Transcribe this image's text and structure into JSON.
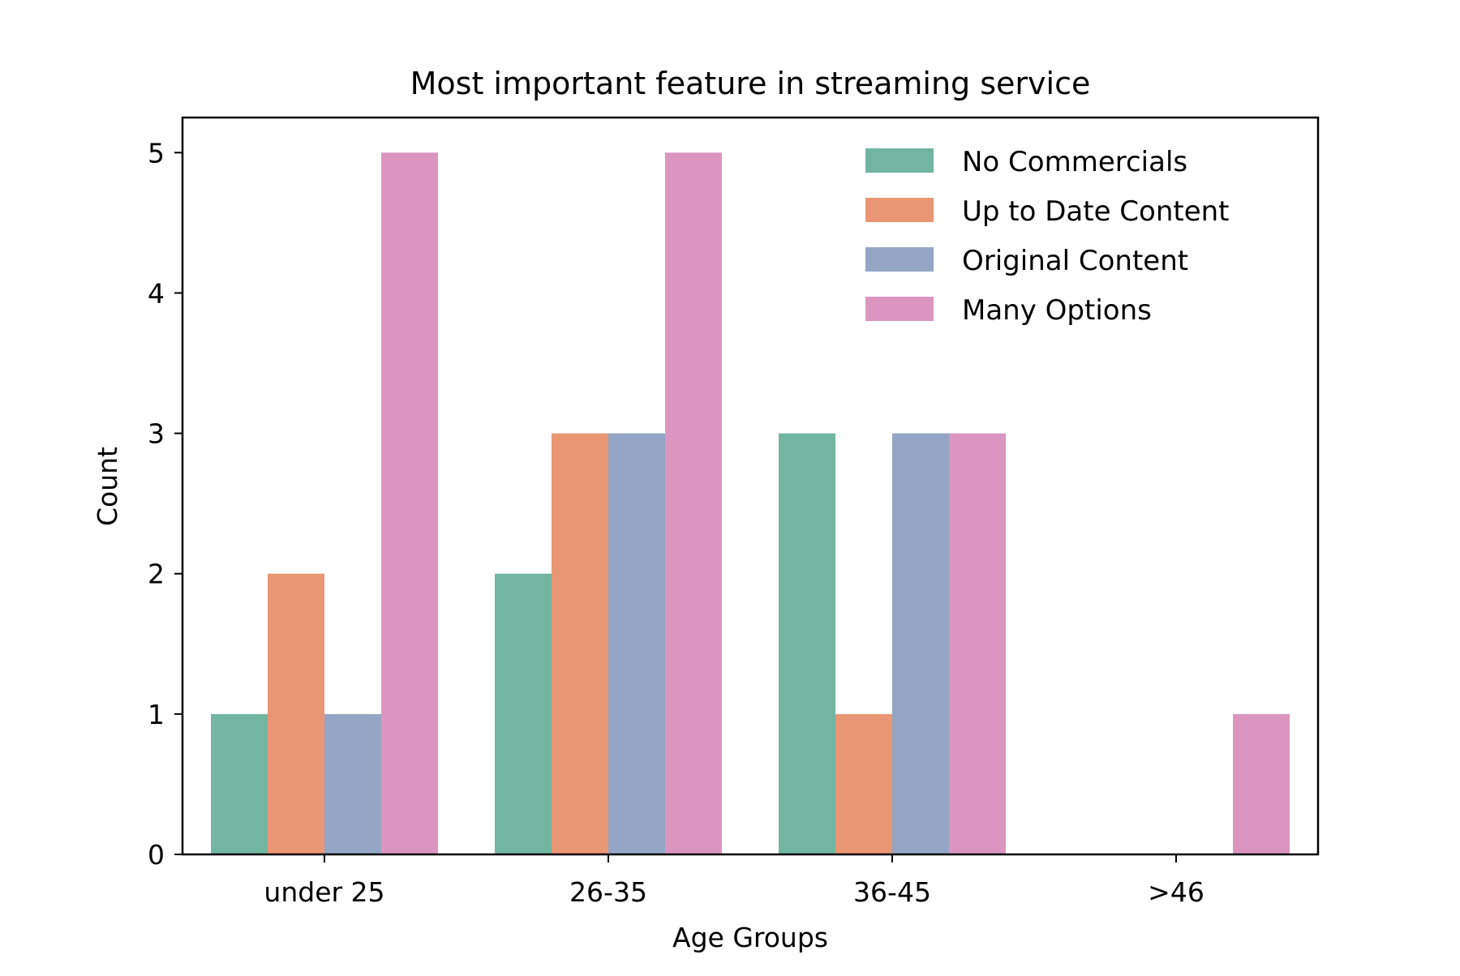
{
  "chart_data": {
    "type": "bar",
    "title": "Most important feature in streaming service",
    "xlabel": "Age Groups",
    "ylabel": "Count",
    "categories": [
      "under 25",
      "26-35",
      "36-45",
      ">46"
    ],
    "series": [
      {
        "name": "No Commercials",
        "color": "#72b6a1",
        "values": [
          1,
          2,
          3,
          0
        ]
      },
      {
        "name": "Up to Date Content",
        "color": "#e99675",
        "values": [
          2,
          3,
          1,
          0
        ]
      },
      {
        "name": "Original Content",
        "color": "#95a5c5",
        "values": [
          1,
          3,
          3,
          0
        ]
      },
      {
        "name": "Many Options",
        "color": "#db96c0",
        "values": [
          5,
          5,
          3,
          1
        ]
      }
    ],
    "ylim": [
      0,
      5.25
    ],
    "yticks": [
      0,
      1,
      2,
      3,
      4,
      5
    ],
    "grid": false,
    "legend_position": "top-right"
  }
}
